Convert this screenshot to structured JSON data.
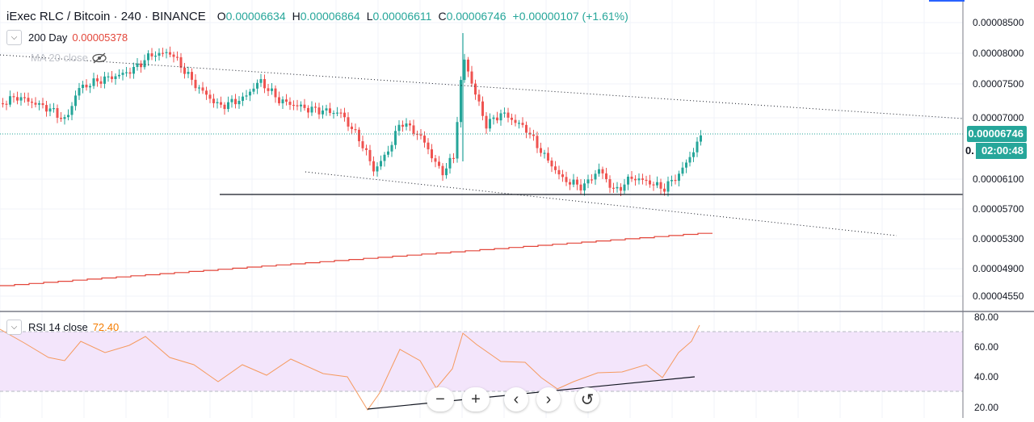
{
  "header": {
    "symbol": "iExec RLC / Bitcoin · 240 · BINANCE",
    "open_label": "O",
    "open": "0.00006634",
    "high_label": "H",
    "high": "0.00006864",
    "low_label": "L",
    "low": "0.00006611",
    "close_label": "C",
    "close": "0.00006746",
    "change": "+0.00000107 (+1.61%)"
  },
  "indicators": {
    "sma_name": "200 Day",
    "sma_value": "0.00005378",
    "ma_name": "MA 20 close",
    "rsi_name": "RSI 14 close",
    "rsi_value": "72.40"
  },
  "price_axis": {
    "labels": [
      "0.00008500",
      "0.00008000",
      "0.00007500",
      "0.00007000",
      "0.00006100",
      "0.00005700",
      "0.00005300",
      "0.00004900",
      "0.00004550"
    ],
    "current_price": "0.00006746",
    "countdown": "02:00:48",
    "countdown_prefix": "0."
  },
  "rsi_axis": {
    "labels": [
      "80.00",
      "60.00",
      "40.00",
      "20.00"
    ]
  },
  "colors": {
    "up": "#26a69a",
    "down": "#ef5350",
    "sma": "#e3463a",
    "rsi_line": "#f59a5f",
    "rsi_band": "#f3e5fb",
    "price_tag": "#26a69a"
  },
  "toolbar": {
    "zoom_out_icon": "minus-icon",
    "zoom_in_icon": "plus-icon",
    "back_icon": "chevron-left-icon",
    "forward_icon": "chevron-right-icon",
    "reset_icon": "reset-icon"
  }
}
